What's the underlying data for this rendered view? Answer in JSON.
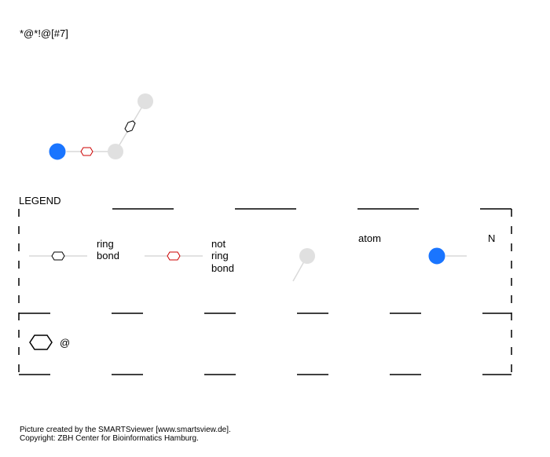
{
  "smarts": "*@*!@[#7]",
  "legend": {
    "title": "LEGEND",
    "ring_bond_line1": "ring",
    "ring_bond_line2": "bond",
    "not_ring_bond_line1": "not",
    "not_ring_bond_line2": "ring",
    "not_ring_bond_line3": "bond",
    "atom_label": "atom",
    "nitrogen_label": "N",
    "ring_symbol_label": "@"
  },
  "footer": {
    "line1": "Picture created by the SMARTSviewer [www.smartsview.de].",
    "line2": "Copyright: ZBH Center for Bioinformatics Hamburg."
  },
  "colors": {
    "nitrogen": "#1a75ff",
    "generic_atom": "#e0e0e0",
    "bond_line": "#d9d9d9",
    "not_ring_marker": "#cc0000",
    "ring_marker": "#000000"
  },
  "molecule": {
    "atoms": [
      "N",
      "*",
      "*"
    ],
    "bonds": [
      "not-ring",
      "ring"
    ]
  }
}
